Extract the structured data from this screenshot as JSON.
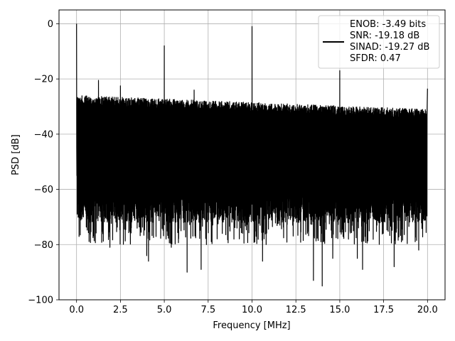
{
  "chart_data": {
    "type": "line",
    "xlabel": "Frequency [MHz]",
    "ylabel": "PSD [dB]",
    "xlim": [
      -1,
      21
    ],
    "ylim": [
      -100,
      5
    ],
    "xticks": [
      0,
      2.5,
      5,
      7.5,
      10,
      12.5,
      15,
      17.5,
      20
    ],
    "xtick_labels": [
      "0.0",
      "2.5",
      "5.0",
      "7.5",
      "10.0",
      "12.5",
      "15.0",
      "17.5",
      "20.0"
    ],
    "yticks": [
      0,
      -20,
      -40,
      -60,
      -80,
      -100
    ],
    "ytick_labels": [
      "0",
      "−20",
      "−40",
      "−60",
      "−80",
      "−100"
    ],
    "grid": true,
    "legend_position": "top-right",
    "line_color": "#000000",
    "legend": [
      "ENOB: -3.49 bits",
      "SNR: -19.18 dB",
      "SINAD: -19.27 dB",
      "SFDR: 0.47"
    ],
    "noise_floor": {
      "x_start": 0,
      "x_end": 20,
      "upper_start": -26,
      "upper_end": -31,
      "lower_typical": -68
    },
    "spikes": [
      {
        "x": 0.0,
        "y": 0
      },
      {
        "x": 1.25,
        "y": -20.5
      },
      {
        "x": 2.5,
        "y": -22.5
      },
      {
        "x": 5.0,
        "y": -8
      },
      {
        "x": 6.7,
        "y": -24
      },
      {
        "x": 10.0,
        "y": -1
      },
      {
        "x": 15.0,
        "y": -17
      },
      {
        "x": 20.0,
        "y": -23.5
      }
    ],
    "dips": [
      {
        "x": 1.9,
        "y": -81
      },
      {
        "x": 4.0,
        "y": -84
      },
      {
        "x": 4.1,
        "y": -86
      },
      {
        "x": 5.4,
        "y": -81
      },
      {
        "x": 6.3,
        "y": -90
      },
      {
        "x": 7.1,
        "y": -89
      },
      {
        "x": 10.6,
        "y": -86
      },
      {
        "x": 13.5,
        "y": -93
      },
      {
        "x": 14.0,
        "y": -95
      },
      {
        "x": 14.6,
        "y": -85
      },
      {
        "x": 16.0,
        "y": -85
      },
      {
        "x": 16.3,
        "y": -89
      },
      {
        "x": 18.1,
        "y": -88
      },
      {
        "x": 19.5,
        "y": -82
      }
    ]
  }
}
